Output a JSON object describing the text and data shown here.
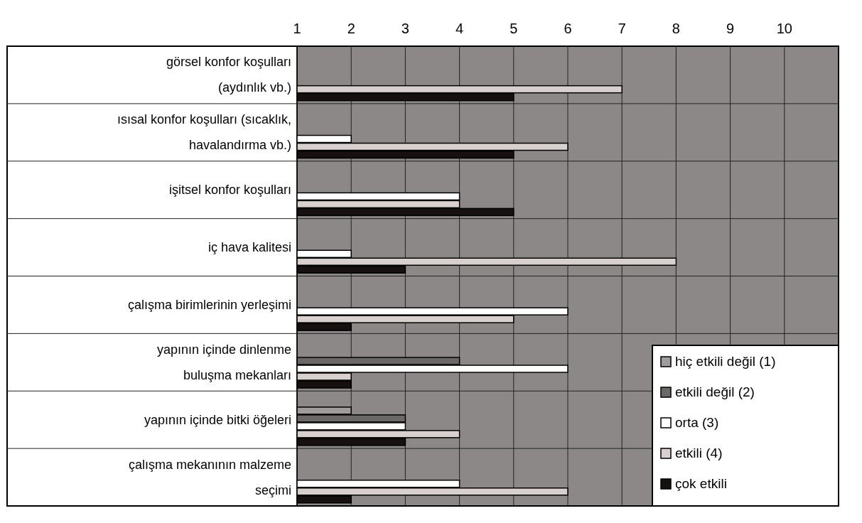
{
  "chart_data": {
    "type": "bar",
    "orientation": "horizontal",
    "categories": [
      "görsel konfor koşulları\n(aydınlık vb.)",
      "ısısal konfor koşulları (sıcaklık,\nhavalandırma vb.)",
      "işitsel konfor koşulları",
      "iç hava kalitesi",
      "çalışma birimlerinin yerleşimi",
      "yapının içinde dinlenme\nbuluşma mekanları",
      "yapının içinde bitki öğeleri",
      "çalışma mekanının malzeme\nseçimi"
    ],
    "series": [
      {
        "name": "hiç etkili değil (1)",
        "color": "#a09c9c",
        "values": [
          null,
          null,
          null,
          null,
          null,
          null,
          2,
          null
        ]
      },
      {
        "name": "etkili değil (2)",
        "color": "#6c6868",
        "values": [
          null,
          null,
          null,
          null,
          null,
          4,
          3,
          null
        ]
      },
      {
        "name": "orta (3)",
        "color": "#ffffff",
        "values": [
          null,
          2,
          4,
          2,
          6,
          6,
          3,
          4
        ]
      },
      {
        "name": "etkili (4)",
        "color": "#d8cfcf",
        "values": [
          7,
          6,
          4,
          8,
          5,
          2,
          4,
          6
        ]
      },
      {
        "name": "çok etkili",
        "color": "#161010",
        "values": [
          5,
          5,
          5,
          3,
          2,
          2,
          3,
          2
        ]
      }
    ],
    "xlim": [
      1,
      11
    ],
    "xticks": [
      1,
      2,
      3,
      4,
      5,
      6,
      7,
      8,
      9,
      10
    ],
    "grid": true,
    "legend": "bottom right"
  }
}
